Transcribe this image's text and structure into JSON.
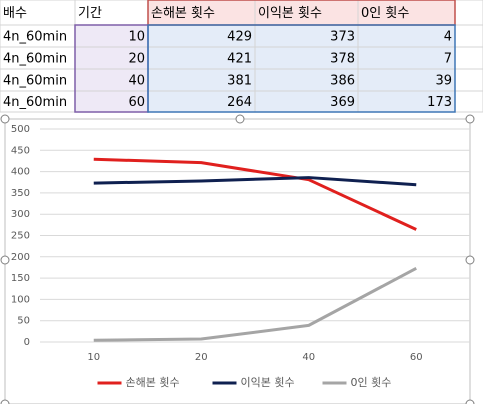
{
  "table": {
    "header": [
      "배수",
      "기간",
      "손해본 횟수",
      "이익본 횟수",
      "0인 횟수"
    ],
    "rows": [
      [
        "4n_60min",
        10,
        429,
        373,
        4
      ],
      [
        "4n_60min",
        20,
        421,
        378,
        7
      ],
      [
        "4n_60min",
        40,
        381,
        386,
        39
      ],
      [
        "4n_60min",
        60,
        264,
        369,
        173
      ]
    ]
  },
  "chart_data": {
    "type": "line",
    "categories": [
      10,
      20,
      40,
      60
    ],
    "series": [
      {
        "name": "손해본 횟수",
        "color": "#e0201e",
        "values": [
          429,
          421,
          381,
          264
        ]
      },
      {
        "name": "이익본 횟수",
        "color": "#0f2050",
        "values": [
          373,
          378,
          386,
          369
        ]
      },
      {
        "name": "0인 횟수",
        "color": "#a5a5a5",
        "values": [
          4,
          7,
          39,
          173
        ]
      }
    ],
    "ylim": [
      0,
      500
    ],
    "yticks": [
      0,
      50,
      100,
      150,
      200,
      250,
      300,
      350,
      400,
      450,
      500
    ],
    "grid": true,
    "legend": "bottom"
  }
}
